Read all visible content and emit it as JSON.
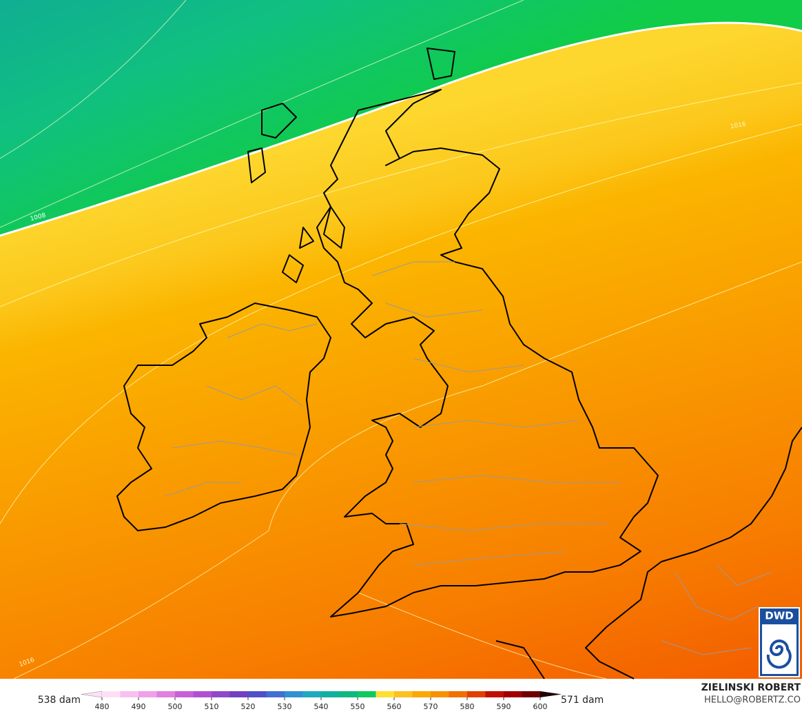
{
  "map": {
    "isobar_labels": [
      "1008",
      "1016",
      "1016"
    ],
    "logo": "DWD",
    "credit": {
      "name": "ZIELINSKI ROBERT",
      "contact": "HELLO@ROBERTZ.CO"
    },
    "legend": {
      "min_label": "538 dam",
      "max_label": "571 dam",
      "ticks": [
        480,
        490,
        500,
        510,
        520,
        530,
        540,
        550,
        560,
        570,
        580,
        590,
        600
      ],
      "colors": [
        "#fde0f5",
        "#f8c0ee",
        "#f0a0e8",
        "#e080e0",
        "#c860d8",
        "#b050d0",
        "#9048c8",
        "#7040c0",
        "#5050c8",
        "#4070d0",
        "#3090d0",
        "#20a8c0",
        "#10b0a0",
        "#10b880",
        "#10c860",
        "#fde030",
        "#fcc020",
        "#fba800",
        "#f89000",
        "#f07000",
        "#e04000",
        "#c01000",
        "#a00000",
        "#700000"
      ]
    }
  }
}
